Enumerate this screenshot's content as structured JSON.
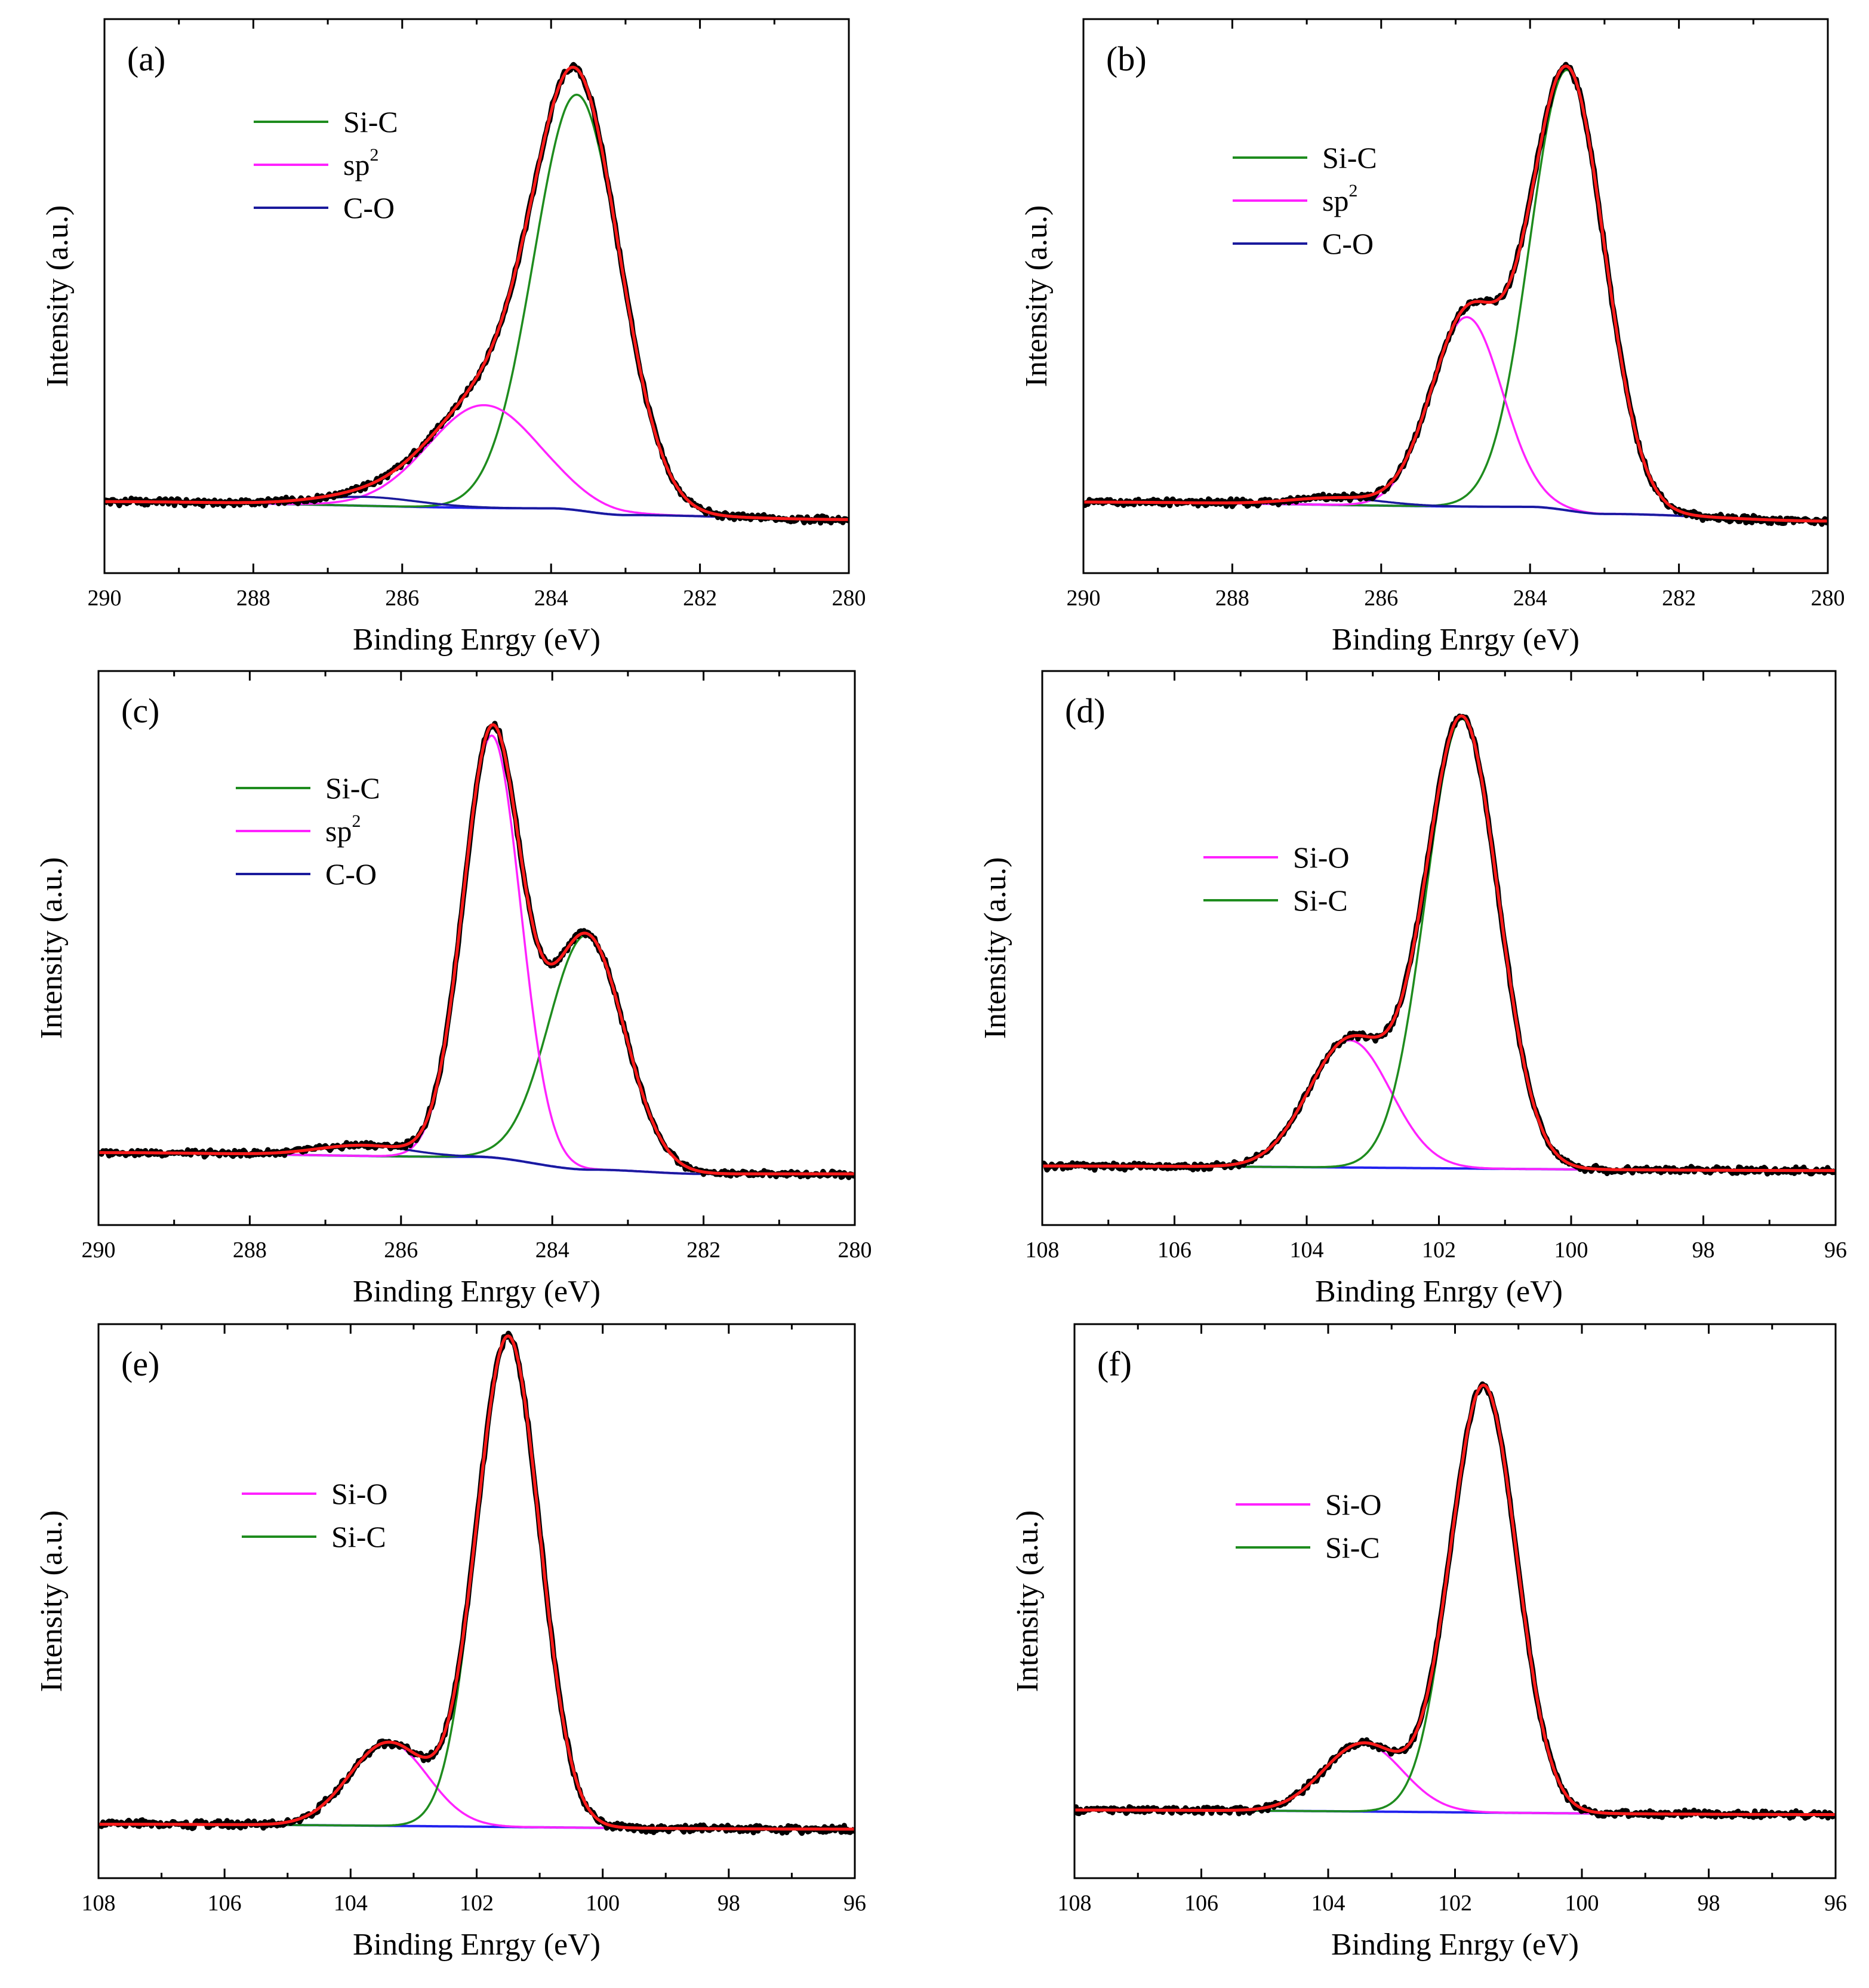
{
  "figure": {
    "colors": {
      "data": "#000000",
      "fit": "#ff1a1a",
      "si_c": "#1e8c1e",
      "sp2": "#ff22ff",
      "c_o": "#1a1a9c",
      "si_o": "#ff22ff",
      "background": "#2222ee"
    }
  },
  "chart_data": [
    {
      "type": "line",
      "panel_label": "(a)",
      "xlabel": "Binding Enrgy (eV)",
      "ylabel": "Intensity (a.u.)",
      "xlim": [
        290,
        280
      ],
      "xticks": [
        "290",
        "288",
        "286",
        "284",
        "282",
        "280"
      ],
      "tick_values": [
        290,
        288,
        286,
        284,
        282,
        280
      ],
      "ylim": [
        -0.12,
        1.12
      ],
      "background": [
        [
          290,
          0.04
        ],
        [
          284,
          0.025
        ],
        [
          283,
          0.01
        ],
        [
          280,
          0.0
        ]
      ],
      "peaks": [
        {
          "name": "Si-C",
          "legend_base": "Si-C",
          "center": 283.65,
          "height": 0.93,
          "sigma": 0.58
        },
        {
          "name": "sp2",
          "legend_base": "sp",
          "legend_sup": "2",
          "center": 284.9,
          "height": 0.23,
          "sigma": 0.75
        },
        {
          "name": "C-O",
          "legend_base": "C-O",
          "center": 286.5,
          "height": 0.02,
          "sigma": 0.7
        }
      ],
      "legend": [
        "Si-C",
        "sp2",
        "C-O"
      ],
      "legend_position": "upper-left"
    },
    {
      "type": "line",
      "panel_label": "(b)",
      "xlabel": "Binding Enrgy (eV)",
      "ylabel": "Intensity (a.u.)",
      "xlim": [
        290,
        280
      ],
      "xticks": [
        "290",
        "288",
        "286",
        "284",
        "282",
        "280"
      ],
      "tick_values": [
        290,
        288,
        286,
        284,
        282,
        280
      ],
      "ylim": [
        -0.15,
        1.02
      ],
      "background": [
        [
          290,
          0.0
        ],
        [
          284,
          -0.01
        ],
        [
          283,
          -0.025
        ],
        [
          280,
          -0.04
        ]
      ],
      "peaks": [
        {
          "name": "Si-C",
          "legend_base": "Si-C",
          "center": 283.5,
          "height": 0.93,
          "sigma": 0.5
        },
        {
          "name": "sp2",
          "legend_base": "sp",
          "legend_sup": "2",
          "center": 284.85,
          "height": 0.4,
          "sigma": 0.48
        },
        {
          "name": "C-O",
          "legend_base": "C-O",
          "center": 286.6,
          "height": 0.015,
          "sigma": 0.6
        }
      ],
      "legend": [
        "Si-C",
        "sp2",
        "C-O"
      ],
      "legend_position": "upper-left"
    },
    {
      "type": "line",
      "panel_label": "(c)",
      "xlabel": "Binding Enrgy (eV)",
      "ylabel": "Intensity (a.u.)",
      "xlim": [
        290,
        280
      ],
      "xticks": [
        "290",
        "288",
        "286",
        "284",
        "282",
        "280"
      ],
      "tick_values": [
        290,
        288,
        286,
        284,
        282,
        280
      ],
      "ylim": [
        -0.12,
        1.18
      ],
      "background": [
        [
          290,
          0.05
        ],
        [
          285,
          0.04
        ],
        [
          283.5,
          0.01
        ],
        [
          282,
          0.0
        ],
        [
          280,
          0.0
        ]
      ],
      "peaks": [
        {
          "name": "Si-C",
          "legend_base": "Si-C",
          "center": 283.55,
          "height": 0.55,
          "sigma": 0.5
        },
        {
          "name": "sp2",
          "legend_base": "sp",
          "legend_sup": "2",
          "center": 284.8,
          "height": 0.99,
          "sigma": 0.38
        },
        {
          "name": "C-O",
          "legend_base": "C-O",
          "center": 286.5,
          "height": 0.025,
          "sigma": 0.6
        }
      ],
      "legend": [
        "Si-C",
        "sp2",
        "C-O"
      ],
      "legend_position": "upper-left"
    },
    {
      "type": "line",
      "panel_label": "(d)",
      "xlabel": "Binding Enrgy (eV)",
      "ylabel": "Intensity (a.u.)",
      "xlim": [
        108,
        96
      ],
      "xticks": [
        "108",
        "106",
        "104",
        "102",
        "100",
        "98",
        "96"
      ],
      "tick_values": [
        108,
        106,
        104,
        102,
        100,
        98,
        96
      ],
      "ylim": [
        -0.12,
        1.1
      ],
      "background": [
        [
          108,
          0.01
        ],
        [
          96,
          0.0
        ]
      ],
      "peaks": [
        {
          "name": "Si-O",
          "legend_base": "Si-O",
          "center": 103.35,
          "height": 0.28,
          "sigma": 0.62
        },
        {
          "name": "Si-C",
          "legend_base": "Si-C",
          "center": 101.65,
          "height": 0.99,
          "sigma": 0.55
        }
      ],
      "legend": [
        "Si-O",
        "Si-C"
      ],
      "legend_position": "upper-left"
    },
    {
      "type": "line",
      "panel_label": "(e)",
      "xlabel": "Binding Enrgy (eV)",
      "ylabel": "Intensity (a.u.)",
      "xlim": [
        108,
        96
      ],
      "xticks": [
        "108",
        "106",
        "104",
        "102",
        "100",
        "98",
        "96"
      ],
      "tick_values": [
        108,
        106,
        104,
        102,
        100,
        98,
        96
      ],
      "ylim": [
        -0.1,
        1.03
      ],
      "background": [
        [
          108,
          0.01
        ],
        [
          96,
          0.0
        ]
      ],
      "peaks": [
        {
          "name": "Si-O",
          "legend_base": "Si-O",
          "center": 103.4,
          "height": 0.17,
          "sigma": 0.62
        },
        {
          "name": "Si-C",
          "legend_base": "Si-C",
          "center": 101.5,
          "height": 1.0,
          "sigma": 0.5
        }
      ],
      "legend": [
        "Si-O",
        "Si-C"
      ],
      "legend_position": "upper-left"
    },
    {
      "type": "line",
      "panel_label": "(f)",
      "xlabel": "Binding Enrgy (eV)",
      "ylabel": "Intensity (a.u.)",
      "xlim": [
        108,
        96
      ],
      "xticks": [
        "108",
        "106",
        "104",
        "102",
        "100",
        "98",
        "96"
      ],
      "tick_values": [
        108,
        106,
        104,
        102,
        100,
        98,
        96
      ],
      "ylim": [
        -0.14,
        1.08
      ],
      "background": [
        [
          108,
          0.01
        ],
        [
          96,
          0.0
        ]
      ],
      "peaks": [
        {
          "name": "Si-O",
          "legend_base": "Si-O",
          "center": 103.45,
          "height": 0.15,
          "sigma": 0.62
        },
        {
          "name": "Si-C",
          "legend_base": "Si-C",
          "center": 101.55,
          "height": 0.94,
          "sigma": 0.52
        }
      ],
      "legend": [
        "Si-O",
        "Si-C"
      ],
      "legend_position": "upper-left"
    }
  ]
}
